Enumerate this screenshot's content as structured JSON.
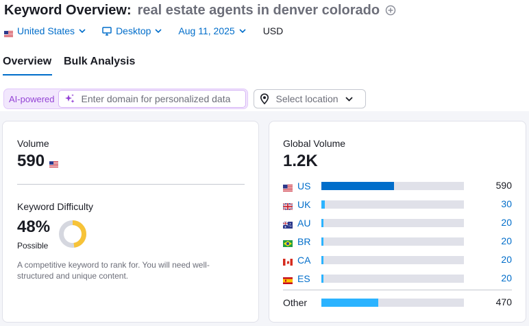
{
  "header": {
    "title_label": "Keyword Overview:",
    "keyword": "real estate agents in denver colorado",
    "add_icon": "plus-circle-icon"
  },
  "filters": {
    "country": "United States",
    "device": "Desktop",
    "date": "Aug 11, 2025",
    "currency": "USD"
  },
  "tabs": [
    {
      "label": "Overview",
      "active": true
    },
    {
      "label": "Bulk Analysis",
      "active": false
    }
  ],
  "ai": {
    "badge": "AI-powered",
    "placeholder": "Enter domain for personalized data",
    "location_placeholder": "Select location"
  },
  "volume": {
    "label": "Volume",
    "value": "590"
  },
  "keyword_difficulty": {
    "label": "Keyword Difficulty",
    "value": "48%",
    "percent": 48,
    "level": "Possible",
    "description": "A competitive keyword to rank for. You will need well-structured and unique content.",
    "color": "#f7c338"
  },
  "global_volume": {
    "label": "Global Volume",
    "value": "1.2K",
    "countries": [
      {
        "code": "US",
        "value": "590",
        "fill": 0.51,
        "color": "#006dca",
        "flag": "us-flag-icon"
      },
      {
        "code": "UK",
        "value": "30",
        "fill": 0.025,
        "color": "#2bb3ff",
        "flag": "uk-flag-icon"
      },
      {
        "code": "AU",
        "value": "20",
        "fill": 0.015,
        "color": "#2bb3ff",
        "flag": "au-flag-icon"
      },
      {
        "code": "BR",
        "value": "20",
        "fill": 0.015,
        "color": "#2bb3ff",
        "flag": "br-flag-icon"
      },
      {
        "code": "CA",
        "value": "20",
        "fill": 0.015,
        "color": "#2bb3ff",
        "flag": "ca-flag-icon"
      },
      {
        "code": "ES",
        "value": "20",
        "fill": 0.015,
        "color": "#2bb3ff",
        "flag": "es-flag-icon"
      }
    ],
    "other": {
      "label": "Other",
      "value": "470",
      "fill": 0.4,
      "color": "#2bb3ff"
    }
  }
}
